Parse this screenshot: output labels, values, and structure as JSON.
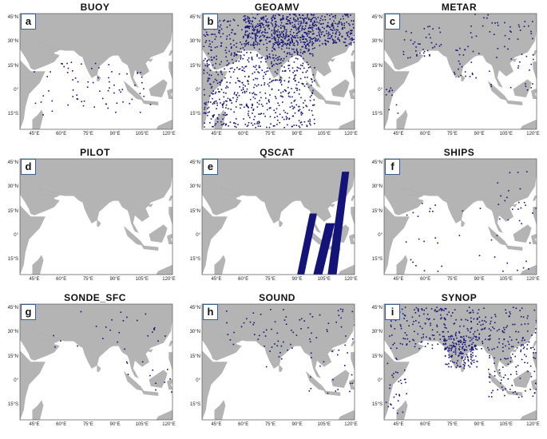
{
  "panels": [
    {
      "letter": "a",
      "title": "BUOY",
      "obs": "sparse_ocean"
    },
    {
      "letter": "b",
      "title": "GEOAMV",
      "obs": "dense"
    },
    {
      "letter": "c",
      "title": "METAR",
      "obs": "coastal"
    },
    {
      "letter": "d",
      "title": "PILOT",
      "obs": "none"
    },
    {
      "letter": "e",
      "title": "QSCAT",
      "obs": "swaths"
    },
    {
      "letter": "f",
      "title": "SHIPS",
      "obs": "scattered"
    },
    {
      "letter": "g",
      "title": "SONDE_SFC",
      "obs": "land_sparse"
    },
    {
      "letter": "h",
      "title": "SOUND",
      "obs": "land_medium"
    },
    {
      "letter": "i",
      "title": "SYNOP",
      "obs": "land_dense"
    }
  ],
  "lat_labels": [
    "45°N",
    "30°N",
    "15°N",
    "0°",
    "15°S"
  ],
  "lon_labels": [
    "45°E",
    "60°E",
    "75°E",
    "90°E",
    "105°E",
    "120°E"
  ],
  "colors": {
    "land": "#b4b4b4",
    "ocean": "#ffffff",
    "obs": "#141478",
    "frame": "#666666"
  }
}
